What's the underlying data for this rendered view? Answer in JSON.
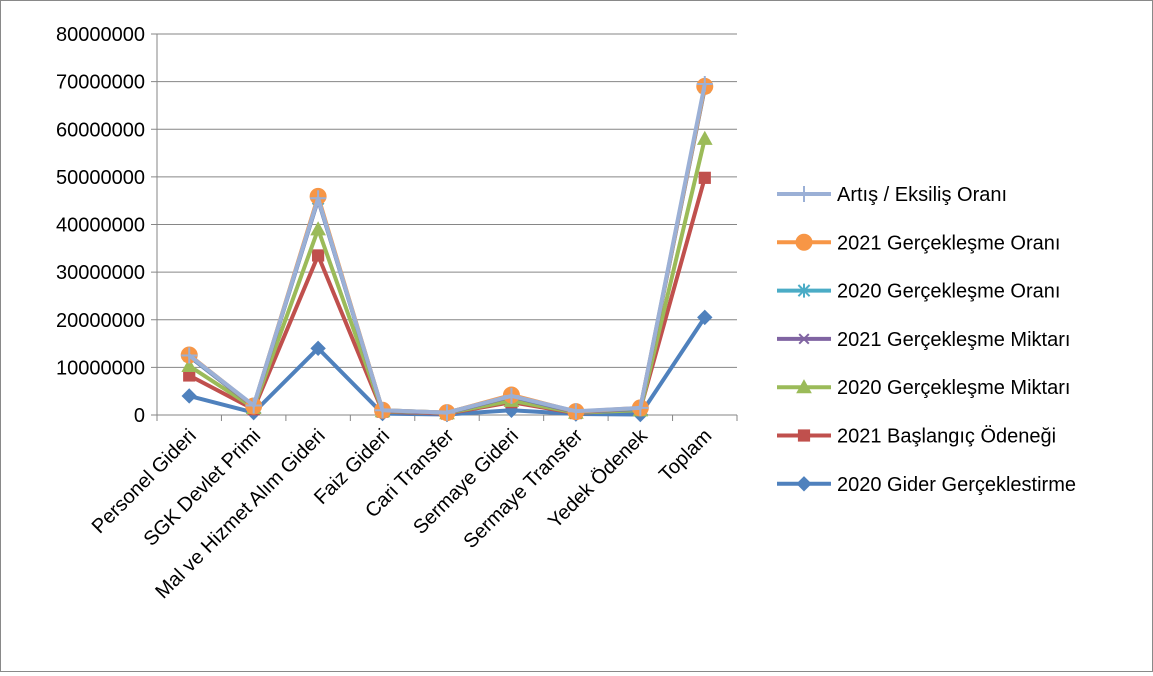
{
  "chart_data": {
    "type": "line",
    "title": "",
    "xlabel": "",
    "ylabel": "",
    "categories": [
      "Personel Gideri",
      "SGK Devlet Primi",
      "Mal ve Hizmet Alım Gideri",
      "Faiz Gideri",
      "Cari Transfer",
      "Sermaye Gideri",
      "Sermaye Transfer",
      "Yedek Ödenek",
      "Toplam"
    ],
    "ylim": [
      0,
      80000000
    ],
    "yticks": [
      "0",
      "10000000",
      "20000000",
      "30000000",
      "40000000",
      "50000000",
      "60000000",
      "70000000",
      "80000000"
    ],
    "grid": true,
    "legend_position": "right",
    "series": [
      {
        "name": "Artış / Eksiliş Oranı",
        "color": "#9bb0d6",
        "marker": "plus",
        "values": [
          12500000,
          2000000,
          45500000,
          1000000,
          500000,
          4000000,
          800000,
          1500000,
          69500000
        ]
      },
      {
        "name": "2021 Gerçekleşme Oranı",
        "color": "#f79646",
        "marker": "circle",
        "values": [
          12600000,
          1900000,
          45900000,
          1000000,
          500000,
          4200000,
          700000,
          1500000,
          69000000
        ]
      },
      {
        "name": "2020 Gerçekleşme  Oranı",
        "color": "#4bacc6",
        "marker": "star",
        "values": [
          12400000,
          1900000,
          45400000,
          1000000,
          500000,
          4000000,
          700000,
          1400000,
          68800000
        ]
      },
      {
        "name": "2021 Gerçekleşme Miktarı",
        "color": "#8064a2",
        "marker": "x",
        "values": [
          12300000,
          1800000,
          45200000,
          900000,
          400000,
          3900000,
          600000,
          1300000,
          68600000
        ]
      },
      {
        "name": "2020 Gerçekleşme Miktarı",
        "color": "#9bbb59",
        "marker": "triangle",
        "values": [
          10300000,
          1500000,
          39000000,
          800000,
          400000,
          3000000,
          500000,
          1000000,
          58000000
        ]
      },
      {
        "name": "2021 Başlangıç Ödeneği",
        "color": "#c0504d",
        "marker": "square",
        "values": [
          8300000,
          1200000,
          33500000,
          700000,
          300000,
          2700000,
          400000,
          1200000,
          49800000
        ]
      },
      {
        "name": "2020 Gider Gerçeklestirme",
        "color": "#4f81bd",
        "marker": "diamond",
        "values": [
          4000000,
          500000,
          14000000,
          300000,
          100000,
          1000000,
          200000,
          100000,
          20500000
        ]
      }
    ]
  }
}
